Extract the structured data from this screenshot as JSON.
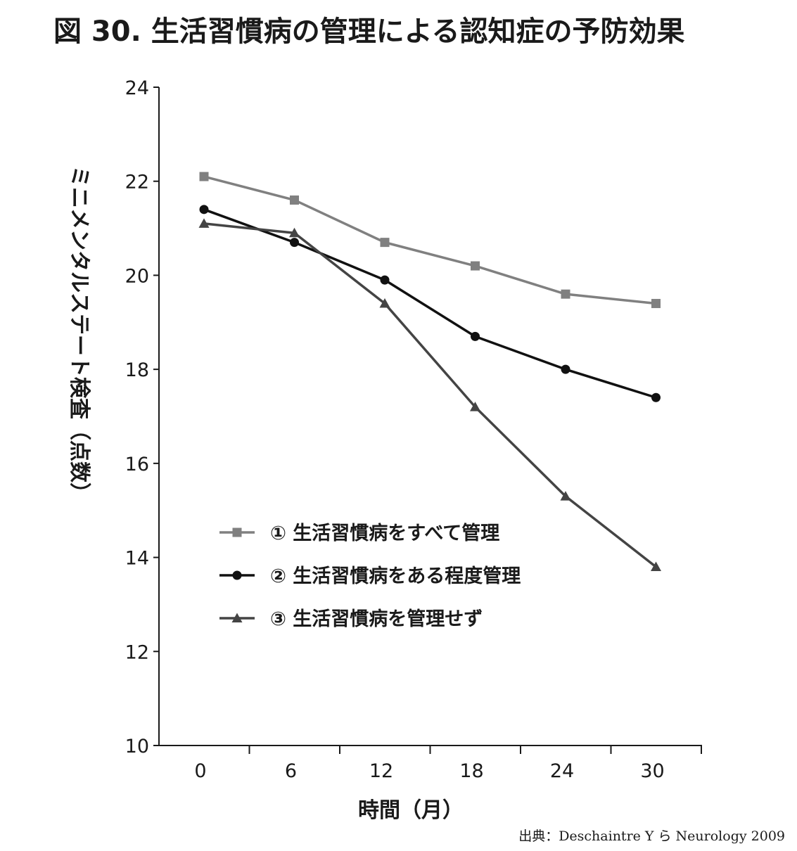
{
  "chart_data": {
    "type": "line",
    "title": "図 30. 生活習慣病の管理による認知症の予防効果",
    "xlabel": "時間（月）",
    "ylabel": "ミニメンタルステート検査（点数）",
    "x": [
      0,
      6,
      12,
      18,
      24,
      30
    ],
    "xticks": [
      "0",
      "6",
      "12",
      "18",
      "24",
      "30"
    ],
    "yticks": [
      "10",
      "12",
      "14",
      "16",
      "18",
      "20",
      "22",
      "24"
    ],
    "ylim": [
      10,
      24
    ],
    "grid": false,
    "legend_position": "center-left",
    "series": [
      {
        "name": "① 生活習慣病をすべて管理",
        "marker": "square",
        "color": "#808080",
        "values": [
          22.1,
          21.6,
          20.7,
          20.2,
          19.6,
          19.4
        ]
      },
      {
        "name": "② 生活習慣病をある程度管理",
        "marker": "circle",
        "color": "#111111",
        "values": [
          21.4,
          20.7,
          19.9,
          18.7,
          18.0,
          17.4
        ]
      },
      {
        "name": "③ 生活習慣病を管理せず",
        "marker": "triangle",
        "color": "#444444",
        "values": [
          21.1,
          20.9,
          19.4,
          17.2,
          15.3,
          13.8
        ]
      }
    ],
    "source": "出典：Deschaintre Y ら Neurology 2009"
  }
}
